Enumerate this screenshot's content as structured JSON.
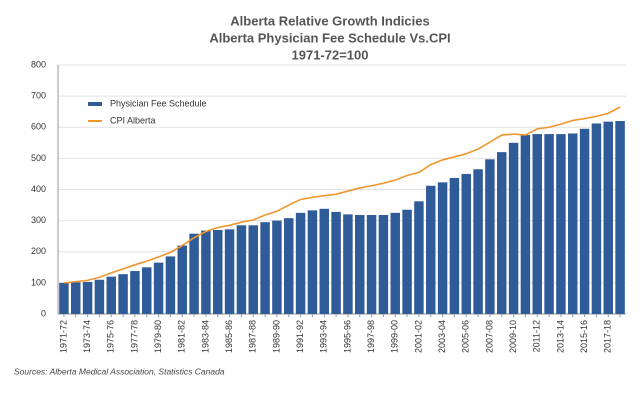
{
  "chart_data": {
    "type": "bar",
    "title": "Alberta Relative Growth Indicies",
    "subtitle": "Alberta Physician Fee Schedule Vs.CPI",
    "subtitle2": "1971-72=100",
    "source": "Sources: Alberta Medical Association, Statistics Canada",
    "categories": [
      "1971-72",
      null,
      "1973-74",
      null,
      "1975-76",
      null,
      "1977-78",
      null,
      "1979-80",
      null,
      "1981-82",
      null,
      "1983-84",
      null,
      "1985-86",
      null,
      "1987-88",
      null,
      "1989-90",
      null,
      "1991-92",
      null,
      "1993-94",
      null,
      "1995-96",
      null,
      "1997-98",
      null,
      "1999-00",
      null,
      "2001-02",
      null,
      "2003-04",
      null,
      "2005-06",
      null,
      "2007-08",
      null,
      "2009-10",
      null,
      "2011-12",
      null,
      "2013-14",
      null,
      "2015-16",
      null,
      "2017-18",
      null
    ],
    "series": [
      {
        "name": "Physician Fee Schedule",
        "type": "bar",
        "color": "#2f5b98",
        "values": [
          100,
          102,
          103,
          110,
          120,
          128,
          138,
          150,
          165,
          185,
          220,
          258,
          268,
          270,
          272,
          285,
          285,
          295,
          300,
          308,
          325,
          333,
          338,
          328,
          320,
          318,
          318,
          318,
          325,
          335,
          362,
          412,
          423,
          437,
          450,
          465,
          497,
          520,
          550,
          575,
          578,
          578,
          578,
          580,
          595,
          612,
          618,
          620
        ]
      },
      {
        "name": "CPI Alberta",
        "type": "line",
        "color": "#f0962e",
        "values": [
          100,
          104,
          108,
          118,
          132,
          145,
          158,
          170,
          183,
          198,
          220,
          245,
          265,
          278,
          285,
          295,
          302,
          318,
          330,
          350,
          368,
          375,
          380,
          385,
          395,
          405,
          412,
          420,
          430,
          445,
          455,
          480,
          495,
          505,
          515,
          530,
          552,
          575,
          578,
          575,
          595,
          600,
          610,
          622,
          628,
          635,
          645,
          665
        ]
      }
    ],
    "ylim": [
      0,
      800
    ],
    "yticks": [
      0,
      100,
      200,
      300,
      400,
      500,
      600,
      700,
      800
    ],
    "grid": true,
    "legend": "upper left"
  }
}
